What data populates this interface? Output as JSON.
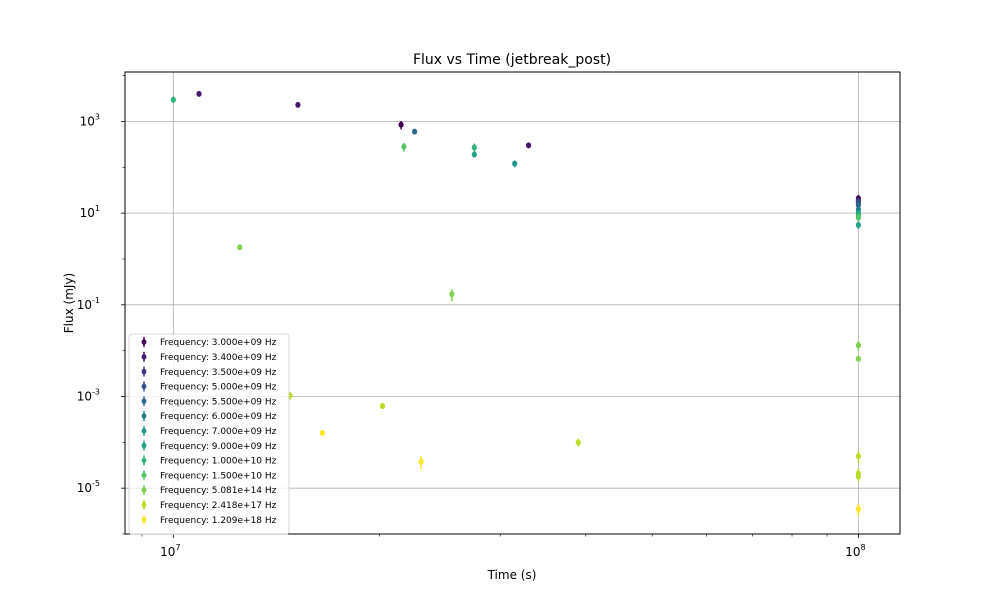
{
  "chart_data": {
    "type": "scatter",
    "title": "Flux vs Time (jetbreak_post)",
    "xlabel": "Time (s)",
    "ylabel": "Flux (mJy)",
    "xscale": "log",
    "yscale": "log",
    "xlim": [
      8500000,
      115000000
    ],
    "ylim": [
      1e-06,
      12000.0
    ],
    "grid": true,
    "legend_position": "lower-left",
    "x_ticks": [
      {
        "value": 10000000,
        "label": "10^7"
      },
      {
        "value": 100000000,
        "label": "10^8"
      }
    ],
    "y_ticks": [
      {
        "value": 1e-05,
        "label": "10^-5"
      },
      {
        "value": 0.001,
        "label": "10^-3"
      },
      {
        "value": 0.1,
        "label": "10^-1"
      },
      {
        "value": 10,
        "label": "10^1"
      },
      {
        "value": 1000,
        "label": "10^3"
      }
    ],
    "series": [
      {
        "name": "Frequency: 3.000e+09 Hz",
        "color": "#440154",
        "x": [
          21500000,
          100000000
        ],
        "y": [
          850,
          21
        ],
        "yerr": [
          180,
          4
        ]
      },
      {
        "name": "Frequency: 3.400e+09 Hz",
        "color": "#47176b",
        "x": [
          10900000,
          15200000,
          33000000,
          100000000
        ],
        "y": [
          4000,
          2300,
          300,
          18
        ],
        "yerr": [
          200,
          150,
          20,
          2
        ]
      },
      {
        "name": "Frequency: 3.500e+09 Hz",
        "color": "#433481",
        "x": [
          100000000
        ],
        "y": [
          19
        ],
        "yerr": [
          2
        ]
      },
      {
        "name": "Frequency: 5.000e+09 Hz",
        "color": "#38508b",
        "x": [
          100000000
        ],
        "y": [
          17
        ],
        "yerr": [
          2
        ]
      },
      {
        "name": "Frequency: 5.500e+09 Hz",
        "color": "#2d6a8e",
        "x": [
          22500000,
          100000000
        ],
        "y": [
          600,
          15
        ],
        "yerr": [
          60,
          2
        ]
      },
      {
        "name": "Frequency: 6.000e+09 Hz",
        "color": "#24808e",
        "x": [
          100000000
        ],
        "y": [
          12
        ],
        "yerr": [
          1.5
        ]
      },
      {
        "name": "Frequency: 7.000e+09 Hz",
        "color": "#1f988b",
        "x": [
          31500000,
          100000000
        ],
        "y": [
          120,
          10
        ],
        "yerr": [
          20,
          1.5
        ]
      },
      {
        "name": "Frequency: 9.000e+09 Hz",
        "color": "#21a585",
        "x": [
          27500000,
          100000000
        ],
        "y": [
          190,
          5.5
        ],
        "yerr": [
          20,
          1
        ]
      },
      {
        "name": "Frequency: 1.000e+10 Hz",
        "color": "#30b57b",
        "x": [
          10000000,
          27500000,
          100000000
        ],
        "y": [
          3000,
          270,
          9
        ],
        "yerr": [
          500,
          60,
          2
        ]
      },
      {
        "name": "Frequency: 1.500e+10 Hz",
        "color": "#55c667",
        "x": [
          21700000,
          100000000
        ],
        "y": [
          280,
          8
        ],
        "yerr": [
          60,
          1.5
        ]
      },
      {
        "name": "Frequency: 5.081e+14 Hz",
        "color": "#7fd34e",
        "x": [
          12500000,
          25500000,
          100000000,
          100000000
        ],
        "y": [
          1.8,
          0.17,
          0.013,
          0.0066
        ],
        "yerr": [
          0.2,
          0.05,
          0.003,
          0.0007
        ]
      },
      {
        "name": "Frequency: 2.418e+17 Hz",
        "color": "#bade28",
        "x": [
          14800000,
          20200000,
          39000000,
          100000000,
          100000000,
          100000000
        ],
        "y": [
          0.00105,
          0.00062,
          0.0001,
          5e-05,
          2.1e-05,
          1.8e-05
        ],
        "yerr": [
          0.0002,
          8e-05,
          2e-05,
          1.5e-05,
          6e-06,
          4e-06
        ]
      },
      {
        "name": "Frequency: 1.209e+18 Hz",
        "color": "#fde725",
        "x": [
          16500000,
          23000000,
          100000000
        ],
        "y": [
          0.00016,
          3.8e-05,
          3.5e-06
        ],
        "yerr": [
          2e-05,
          1.2e-05,
          1e-06
        ]
      }
    ]
  }
}
